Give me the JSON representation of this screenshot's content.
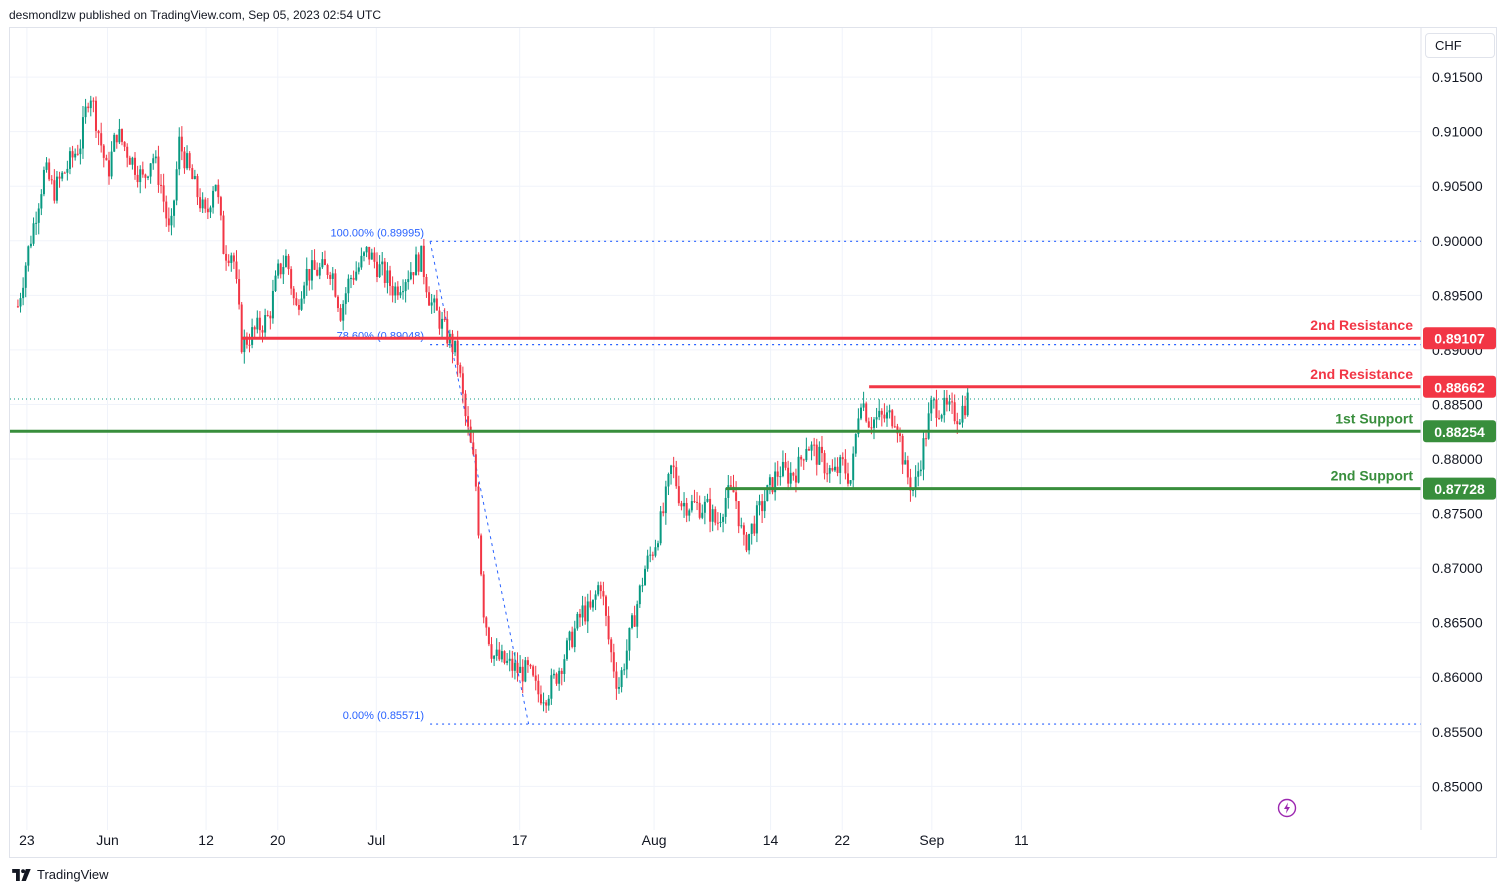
{
  "header": {
    "publisher_text": "desmondlzw published on TradingView.com, Sep 05, 2023 02:54 UTC"
  },
  "footer": {
    "brand": "TradingView"
  },
  "ui": {
    "currency_button": "CHF",
    "icons": [
      "tradingview-logo-icon",
      "lightning-icon"
    ]
  },
  "colors": {
    "up": "#089981",
    "down": "#f23645",
    "resistance": "#f23645",
    "support": "#388e3c",
    "fib": "#2962ff"
  },
  "chart_data": {
    "type": "candlestick",
    "ylim": [
      0.846,
      0.9195
    ],
    "price_ticks": [
      "0.91500",
      "0.91000",
      "0.90500",
      "0.90000",
      "0.89500",
      "0.89000",
      "0.88500",
      "0.88000",
      "0.87500",
      "0.87000",
      "0.86500",
      "0.86000",
      "0.85500",
      "0.85000"
    ],
    "time_labels": [
      "23",
      "Jun",
      "12",
      "20",
      "Jul",
      "17",
      "Aug",
      "14",
      "22",
      "Sep",
      "11"
    ],
    "levels": [
      {
        "label": "2nd Resistance",
        "value": "0.89107",
        "kind": "resistance",
        "price": 0.89107,
        "start": "2023-06-16"
      },
      {
        "label": "2nd Resistance",
        "value": "0.88662",
        "kind": "resistance",
        "price": 0.88662,
        "start": "2023-08-25"
      },
      {
        "label": "1st Support",
        "value": "0.88254",
        "kind": "support",
        "price": 0.88254,
        "start": "2023-05-22"
      },
      {
        "label": "2nd Support",
        "value": "0.87728",
        "kind": "support",
        "price": 0.87728,
        "start": "2023-08-09"
      }
    ],
    "fib": [
      {
        "label": "100.00% (0.89995)",
        "price": 0.89995
      },
      {
        "label": "78.60% (0.89048)",
        "price": 0.89048
      },
      {
        "label": "0.00% (0.85571)",
        "price": 0.85571
      }
    ],
    "last_price": 0.8855,
    "path": [
      [
        "2023-05-22",
        0.894
      ],
      [
        "2023-05-23",
        0.8985
      ],
      [
        "2023-05-24",
        0.9025
      ],
      [
        "2023-05-25",
        0.9065
      ],
      [
        "2023-05-26",
        0.9045
      ],
      [
        "2023-05-29",
        0.909
      ],
      [
        "2023-05-30",
        0.914
      ],
      [
        "2023-05-31",
        0.91
      ],
      [
        "2023-06-01",
        0.906
      ],
      [
        "2023-06-02",
        0.91
      ],
      [
        "2023-06-05",
        0.9055
      ],
      [
        "2023-06-06",
        0.908
      ],
      [
        "2023-06-07",
        0.905
      ],
      [
        "2023-06-08",
        0.9
      ],
      [
        "2023-06-09",
        0.909
      ],
      [
        "2023-06-12",
        0.902
      ],
      [
        "2023-06-13",
        0.906
      ],
      [
        "2023-06-14",
        0.899
      ],
      [
        "2023-06-15",
        0.899
      ],
      [
        "2023-06-16",
        0.8905
      ],
      [
        "2023-06-19",
        0.893
      ],
      [
        "2023-06-20",
        0.897
      ],
      [
        "2023-06-21",
        0.8985
      ],
      [
        "2023-06-22",
        0.8935
      ],
      [
        "2023-06-23",
        0.897
      ],
      [
        "2023-06-26",
        0.8975
      ],
      [
        "2023-06-27",
        0.8935
      ],
      [
        "2023-06-28",
        0.8965
      ],
      [
        "2023-06-29",
        0.8975
      ],
      [
        "2023-06-30",
        0.899
      ],
      [
        "2023-07-03",
        0.8955
      ],
      [
        "2023-07-04",
        0.8965
      ],
      [
        "2023-07-05",
        0.8975
      ],
      [
        "2023-07-06",
        0.8985
      ],
      [
        "2023-07-07",
        0.8945
      ],
      [
        "2023-07-10",
        0.8895
      ],
      [
        "2023-07-11",
        0.8835
      ],
      [
        "2023-07-12",
        0.879
      ],
      [
        "2023-07-13",
        0.866
      ],
      [
        "2023-07-14",
        0.862
      ],
      [
        "2023-07-17",
        0.8605
      ],
      [
        "2023-07-18",
        0.8605
      ],
      [
        "2023-07-19",
        0.8585
      ],
      [
        "2023-07-20",
        0.8585
      ],
      [
        "2023-07-21",
        0.86
      ],
      [
        "2023-07-24",
        0.866
      ],
      [
        "2023-07-25",
        0.866
      ],
      [
        "2023-07-26",
        0.869
      ],
      [
        "2023-07-27",
        0.863
      ],
      [
        "2023-07-28",
        0.859
      ],
      [
        "2023-07-31",
        0.87
      ],
      [
        "2023-08-01",
        0.872
      ],
      [
        "2023-08-02",
        0.875
      ],
      [
        "2023-08-03",
        0.8795
      ],
      [
        "2023-08-04",
        0.876
      ],
      [
        "2023-08-07",
        0.8755
      ],
      [
        "2023-08-08",
        0.874
      ],
      [
        "2023-08-09",
        0.8765
      ],
      [
        "2023-08-10",
        0.877
      ],
      [
        "2023-08-11",
        0.872
      ],
      [
        "2023-08-14",
        0.8775
      ],
      [
        "2023-08-15",
        0.879
      ],
      [
        "2023-08-16",
        0.8785
      ],
      [
        "2023-08-17",
        0.879
      ],
      [
        "2023-08-18",
        0.8815
      ],
      [
        "2023-08-21",
        0.8785
      ],
      [
        "2023-08-22",
        0.8795
      ],
      [
        "2023-08-23",
        0.878
      ],
      [
        "2023-08-24",
        0.886
      ],
      [
        "2023-08-25",
        0.8835
      ],
      [
        "2023-08-28",
        0.884
      ],
      [
        "2023-08-29",
        0.879
      ],
      [
        "2023-08-30",
        0.877
      ],
      [
        "2023-08-31",
        0.881
      ],
      [
        "2023-09-01",
        0.885
      ],
      [
        "2023-09-04",
        0.884
      ],
      [
        "2023-09-05",
        0.8855
      ]
    ]
  }
}
